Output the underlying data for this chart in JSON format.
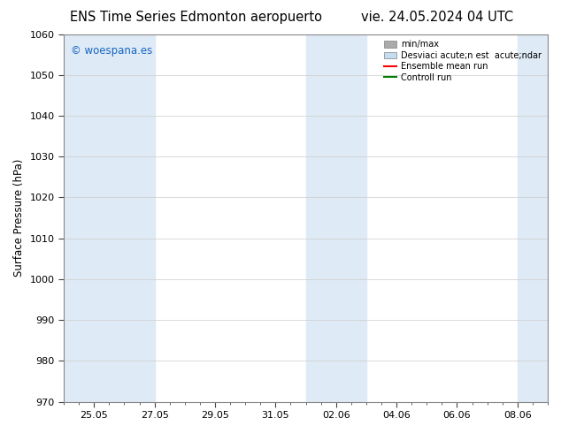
{
  "title_left": "ENS Time Series Edmonton aeropuerto",
  "title_right": "vie. 24.05.2024 04 UTC",
  "ylabel": "Surface Pressure (hPa)",
  "ylim": [
    970,
    1060
  ],
  "yticks": [
    970,
    980,
    990,
    1000,
    1010,
    1020,
    1030,
    1040,
    1050,
    1060
  ],
  "xtick_labels": [
    "25.05",
    "27.05",
    "29.05",
    "31.05",
    "02.06",
    "04.06",
    "06.06",
    "08.06"
  ],
  "xtick_positions": [
    1,
    3,
    5,
    7,
    9,
    11,
    13,
    15
  ],
  "x_min": 0,
  "x_max": 16,
  "shaded_bands": [
    {
      "x_start": 0.5,
      "x_end": 2.5
    },
    {
      "x_start": 2.5,
      "x_end": 3.5
    },
    {
      "x_start": 8.5,
      "x_end": 9.5
    },
    {
      "x_start": 9.5,
      "x_end": 10.0
    },
    {
      "x_start": 15.0,
      "x_end": 16.0
    }
  ],
  "shade_color": "#deeaf5",
  "background_color": "#ffffff",
  "plot_bg_color": "#ffffff",
  "watermark": "© woespana.es",
  "watermark_color": "#1565c0",
  "legend_entries": [
    {
      "label": "min/max",
      "color": "#aaaaaa",
      "lw": 5,
      "style": "patch"
    },
    {
      "label": "Desviaci acute;n est  acute;ndar",
      "color": "#c5ddf0",
      "lw": 5,
      "style": "patch"
    },
    {
      "label": "Ensemble mean run",
      "color": "red",
      "lw": 1.5,
      "style": "line"
    },
    {
      "label": "Controll run",
      "color": "green",
      "lw": 1.5,
      "style": "line"
    }
  ],
  "border_color": "#888888",
  "tick_color": "#444444",
  "grid_color": "#cccccc",
  "title_fontsize": 10.5,
  "axis_label_fontsize": 8.5,
  "tick_fontsize": 8,
  "watermark_fontsize": 8.5
}
